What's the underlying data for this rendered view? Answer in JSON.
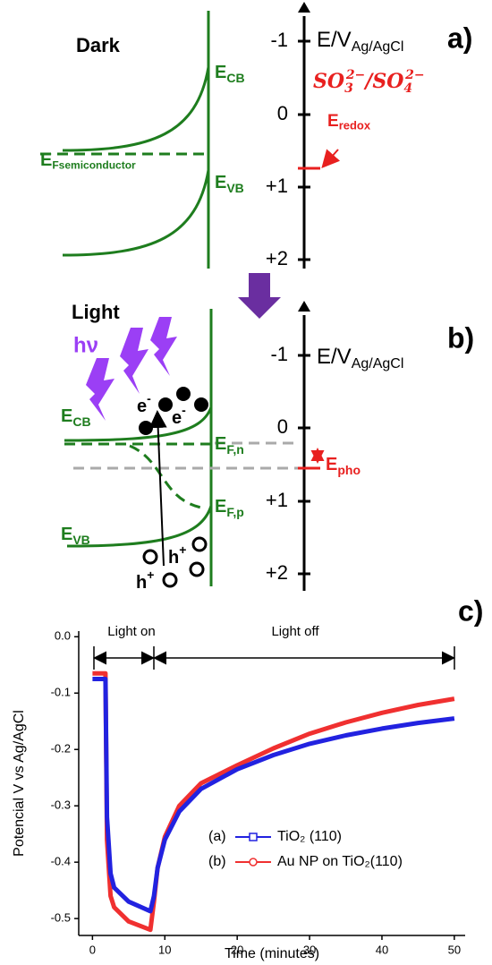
{
  "panel_a": {
    "tag": "a)",
    "condition": "Dark",
    "axis_label": {
      "main": "E/V",
      "sub": "Ag/AgCl"
    },
    "ticks": [
      "-1",
      "0",
      "+1",
      "+2"
    ],
    "cb": {
      "main": "E",
      "sub": "CB"
    },
    "vb": {
      "main": "E",
      "sub": "VB"
    },
    "fermi": {
      "main": "E",
      "sub": "Fsemiconductor"
    },
    "redox_couple": {
      "a": "SO",
      "a_sub": "3",
      "a_sup": "2−",
      "sep": "/",
      "b": "SO",
      "b_sub": "4",
      "b_sup": "2−"
    },
    "redox": {
      "main": "E",
      "sub": "redox"
    }
  },
  "panel_b": {
    "tag": "b)",
    "condition": "Light",
    "photon": "hν",
    "axis_label": {
      "main": "E/V",
      "sub": "Ag/AgCl"
    },
    "ticks": [
      "-1",
      "0",
      "+1",
      "+2"
    ],
    "cb": {
      "main": "E",
      "sub": "CB"
    },
    "vb": {
      "main": "E",
      "sub": "VB"
    },
    "fn": {
      "main": "E",
      "sub": "F,n"
    },
    "fp": {
      "main": "E",
      "sub": "F,p"
    },
    "pho": {
      "main": "E",
      "sub": "pho"
    },
    "electrons": [
      {
        "main": "e",
        "sup": "-"
      },
      {
        "main": "e",
        "sup": "-"
      }
    ],
    "holes": [
      {
        "main": "h",
        "sup": "+"
      },
      {
        "main": "h",
        "sup": "+"
      }
    ]
  },
  "chart_data": {
    "type": "line",
    "tag": "c)",
    "x_label": "Time (minutes)",
    "y_label": "Potencial V vs Ag/AgCl",
    "annotations": [
      "Light on",
      "Light off"
    ],
    "x": [
      0,
      1.8,
      2,
      2.5,
      3,
      5,
      8,
      8.5,
      9,
      10,
      12,
      15,
      20,
      25,
      30,
      35,
      40,
      45,
      50
    ],
    "series": [
      {
        "name": "Au NP on TiO₂(110)",
        "label": "(b)",
        "color": "#f03030",
        "marker": "circle",
        "values": [
          -0.065,
          -0.065,
          -0.36,
          -0.46,
          -0.48,
          -0.505,
          -0.52,
          -0.47,
          -0.41,
          -0.355,
          -0.3,
          -0.26,
          -0.228,
          -0.198,
          -0.172,
          -0.152,
          -0.135,
          -0.121,
          -0.11
        ]
      },
      {
        "name": "TiO₂ (110)",
        "label": "(a)",
        "color": "#2222e0",
        "marker": "square",
        "values": [
          -0.075,
          -0.075,
          -0.32,
          -0.42,
          -0.445,
          -0.47,
          -0.487,
          -0.46,
          -0.41,
          -0.36,
          -0.31,
          -0.27,
          -0.235,
          -0.21,
          -0.19,
          -0.175,
          -0.163,
          -0.153,
          -0.145
        ]
      }
    ],
    "xlim": [
      -1.9,
      51.5
    ],
    "ylim": [
      -0.53,
      0.01
    ],
    "xticks": [
      0,
      10,
      20,
      30,
      40,
      50
    ],
    "yticks": [
      {
        "value": 0,
        "label": "0.0"
      },
      -0.1,
      -0.2,
      -0.3,
      -0.4,
      -0.5
    ]
  }
}
